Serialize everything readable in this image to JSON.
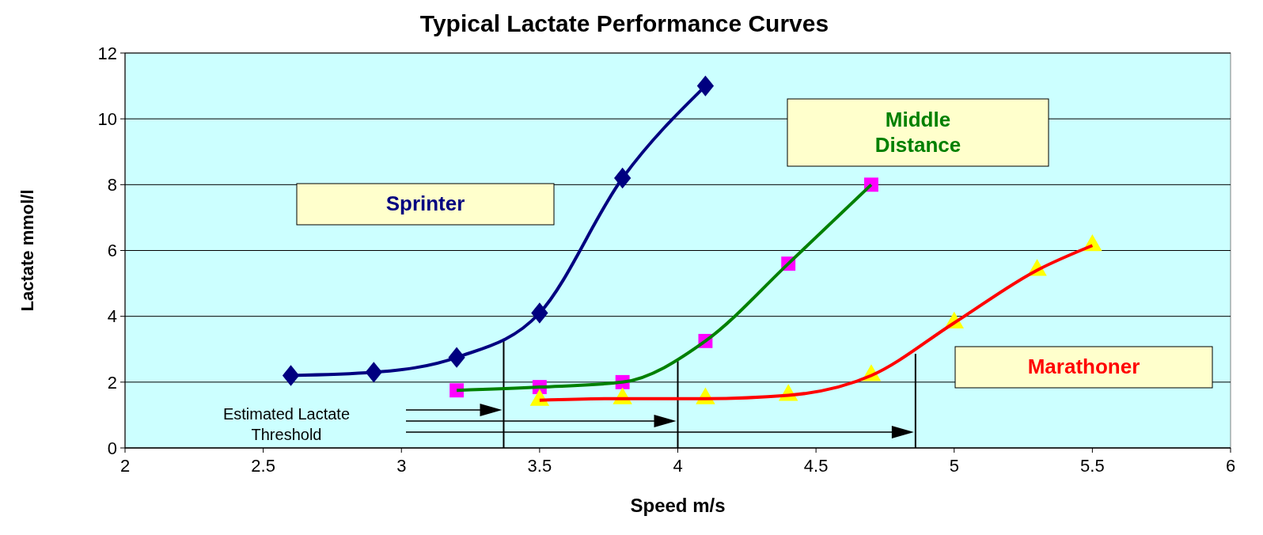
{
  "chart_data": {
    "type": "line",
    "title": "Typical Lactate Performance Curves",
    "xlabel": "Speed m/s",
    "ylabel": "Lactate mmol/l",
    "xlim": [
      2,
      6
    ],
    "xticks": [
      2,
      2.5,
      3,
      3.5,
      4,
      4.5,
      5,
      5.5,
      6
    ],
    "ylim": [
      0,
      12
    ],
    "yticks": [
      0,
      2,
      4,
      6,
      8,
      10,
      12
    ],
    "grid": "y",
    "legend": false,
    "series": [
      {
        "name": "Sprinter",
        "color": "#000080",
        "marker": "diamond",
        "x": [
          2.6,
          2.9,
          3.2,
          3.5,
          3.8,
          4.1
        ],
        "values": [
          2.2,
          2.3,
          2.75,
          4.1,
          8.2,
          11
        ]
      },
      {
        "name": "Middle Distance",
        "color": "#008000",
        "marker": "square",
        "x": [
          3.2,
          3.5,
          3.8,
          4.1,
          4.4,
          4.7
        ],
        "values": [
          1.75,
          1.85,
          2.0,
          3.25,
          5.6,
          8.0
        ]
      },
      {
        "name": "Marathoner",
        "color": "#ff0000",
        "marker": "triangle",
        "x": [
          3.5,
          3.8,
          4.1,
          4.4,
          4.7,
          5.0,
          5.3,
          5.5
        ],
        "values": [
          1.45,
          1.5,
          1.5,
          1.6,
          2.2,
          3.8,
          5.4,
          6.15
        ]
      }
    ],
    "ref_lines": [
      {
        "axis": "x",
        "value": 3.37
      },
      {
        "axis": "x",
        "value": 4.0
      },
      {
        "axis": "x",
        "value": 4.86
      }
    ],
    "annotations": [
      "Estimated Lactate Threshold"
    ]
  }
}
